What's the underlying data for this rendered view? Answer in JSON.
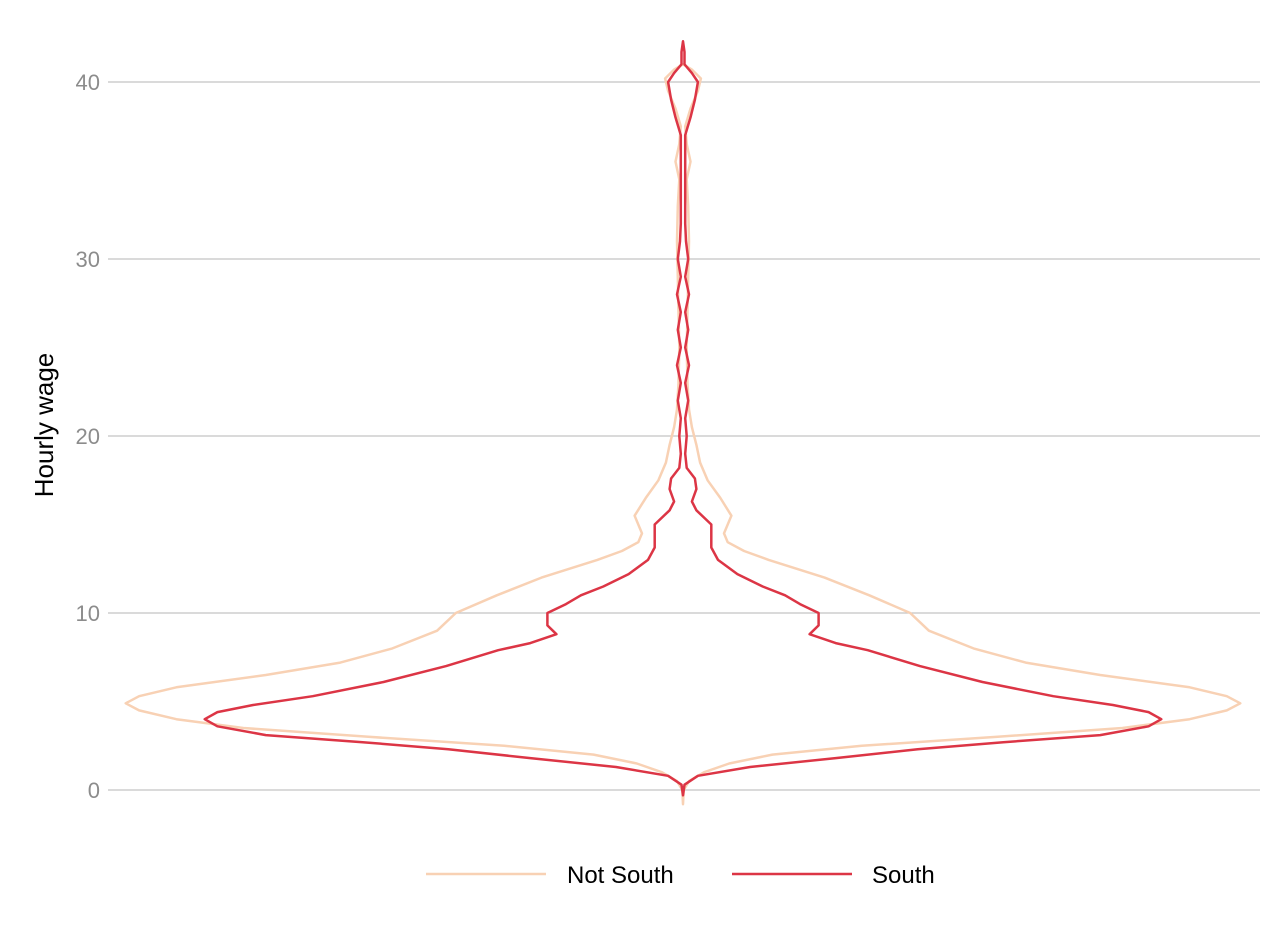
{
  "chart_data": {
    "type": "violin",
    "title": "",
    "xlabel": "",
    "ylabel": "Hourly wage",
    "ylim": [
      -1,
      42.3
    ],
    "yticks": [
      0,
      10,
      20,
      30,
      40
    ],
    "grid": true,
    "legend_position": "bottom",
    "series": [
      {
        "name": "Not South",
        "color": "#f8d1b4",
        "density": [
          [
            -0.8,
            0.0
          ],
          [
            0.0,
            0.01
          ],
          [
            0.5,
            0.08
          ],
          [
            1.0,
            0.28
          ],
          [
            1.5,
            0.62
          ],
          [
            2.0,
            1.2
          ],
          [
            2.5,
            2.4
          ],
          [
            3.0,
            4.2
          ],
          [
            3.5,
            5.9
          ],
          [
            4.0,
            6.8
          ],
          [
            4.5,
            7.3
          ],
          [
            4.9,
            7.48
          ],
          [
            5.3,
            7.3
          ],
          [
            5.8,
            6.8
          ],
          [
            6.5,
            5.6
          ],
          [
            7.2,
            4.6
          ],
          [
            8.0,
            3.9
          ],
          [
            9.0,
            3.3
          ],
          [
            10.0,
            3.05
          ],
          [
            11.0,
            2.5
          ],
          [
            12.0,
            1.9
          ],
          [
            13.0,
            1.15
          ],
          [
            13.5,
            0.82
          ],
          [
            14.0,
            0.6
          ],
          [
            14.5,
            0.55
          ],
          [
            15.5,
            0.65
          ],
          [
            16.5,
            0.5
          ],
          [
            17.5,
            0.33
          ],
          [
            18.5,
            0.23
          ],
          [
            19.5,
            0.18
          ],
          [
            20.5,
            0.12
          ],
          [
            21.5,
            0.08
          ],
          [
            23.0,
            0.06
          ],
          [
            25.0,
            0.05
          ],
          [
            27.0,
            0.06
          ],
          [
            29.0,
            0.07
          ],
          [
            31.0,
            0.08
          ],
          [
            33.0,
            0.07
          ],
          [
            34.5,
            0.05
          ],
          [
            35.5,
            0.1
          ],
          [
            36.5,
            0.05
          ],
          [
            37.5,
            0.03
          ],
          [
            38.5,
            0.1
          ],
          [
            39.5,
            0.2
          ],
          [
            40.2,
            0.24
          ],
          [
            40.7,
            0.12
          ],
          [
            41.0,
            0.0
          ]
        ]
      },
      {
        "name": "South",
        "color": "#dc3545",
        "density": [
          [
            -0.3,
            0.0
          ],
          [
            0.3,
            0.02
          ],
          [
            0.8,
            0.2
          ],
          [
            1.3,
            0.9
          ],
          [
            1.8,
            2.05
          ],
          [
            2.3,
            3.15
          ],
          [
            2.7,
            4.3
          ],
          [
            3.1,
            5.6
          ],
          [
            3.6,
            6.25
          ],
          [
            4.0,
            6.42
          ],
          [
            4.4,
            6.25
          ],
          [
            4.8,
            5.77
          ],
          [
            5.3,
            4.97
          ],
          [
            6.1,
            4.02
          ],
          [
            7.0,
            3.18
          ],
          [
            7.9,
            2.48
          ],
          [
            8.3,
            2.05
          ],
          [
            8.8,
            1.7
          ],
          [
            9.3,
            1.82
          ],
          [
            10.0,
            1.82
          ],
          [
            10.5,
            1.57
          ],
          [
            11.0,
            1.37
          ],
          [
            11.5,
            1.07
          ],
          [
            12.2,
            0.73
          ],
          [
            13.0,
            0.47
          ],
          [
            13.7,
            0.38
          ],
          [
            14.3,
            0.38
          ],
          [
            15.0,
            0.38
          ],
          [
            15.8,
            0.18
          ],
          [
            16.3,
            0.12
          ],
          [
            17.0,
            0.18
          ],
          [
            17.6,
            0.16
          ],
          [
            18.2,
            0.05
          ],
          [
            19.0,
            0.03
          ],
          [
            20.0,
            0.05
          ],
          [
            21.0,
            0.03
          ],
          [
            22.0,
            0.07
          ],
          [
            23.0,
            0.03
          ],
          [
            24.0,
            0.08
          ],
          [
            25.0,
            0.03
          ],
          [
            26.0,
            0.07
          ],
          [
            27.0,
            0.03
          ],
          [
            28.0,
            0.08
          ],
          [
            29.0,
            0.03
          ],
          [
            30.0,
            0.07
          ],
          [
            31.0,
            0.04
          ],
          [
            32.0,
            0.03
          ],
          [
            33.0,
            0.03
          ],
          [
            34.0,
            0.03
          ],
          [
            35.0,
            0.03
          ],
          [
            36.0,
            0.03
          ],
          [
            37.0,
            0.03
          ],
          [
            38.0,
            0.1
          ],
          [
            39.0,
            0.16
          ],
          [
            40.0,
            0.2
          ],
          [
            40.5,
            0.12
          ],
          [
            41.0,
            0.02
          ],
          [
            41.7,
            0.02
          ],
          [
            42.3,
            0.0
          ]
        ]
      }
    ]
  }
}
